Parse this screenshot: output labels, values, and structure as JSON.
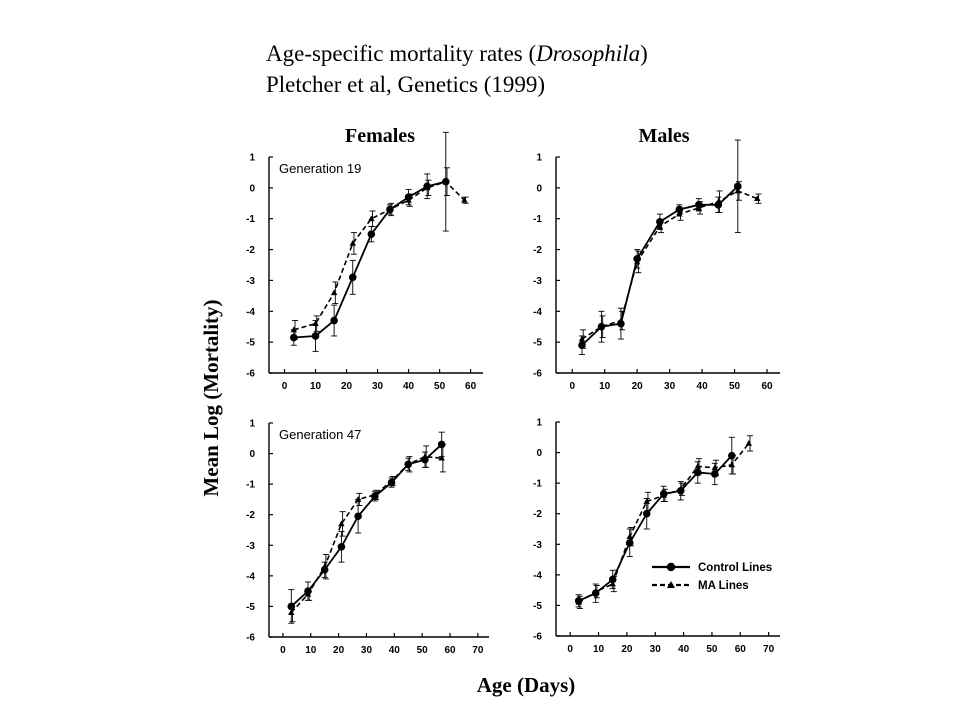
{
  "slide": {
    "title_line1_prefix": "Age-specific mortality rates (",
    "title_line1_italic": "Drosophila",
    "title_line1_suffix": ")",
    "title_line2": "Pletcher et al, Genetics (1999)"
  },
  "figure": {
    "column_titles": [
      "Females",
      "Males"
    ],
    "ylabel": "Mean Log (Mortality)",
    "xlabel": "Age (Days)",
    "legend": {
      "control": "Control Lines",
      "ma": "MA Lines"
    }
  },
  "chart_data": [
    {
      "type": "line",
      "panel": "females-generation-19",
      "annotation": "Generation 19",
      "x_ticks": [
        0,
        10,
        20,
        30,
        40,
        50,
        60
      ],
      "y_ticks": [
        1,
        0,
        -1,
        -2,
        -3,
        -4,
        -5,
        -6
      ],
      "xlim": [
        -5,
        64
      ],
      "ylim": [
        -6,
        1
      ],
      "series": [
        {
          "name": "Control Lines",
          "style": "solid-circle",
          "points": [
            [
              3,
              -4.85,
              0.25
            ],
            [
              10,
              -4.8,
              0.5
            ],
            [
              16,
              -4.3,
              0.5
            ],
            [
              22,
              -2.9,
              0.55
            ],
            [
              28,
              -1.5,
              0.25
            ],
            [
              34,
              -0.7,
              0.15
            ],
            [
              40,
              -0.3,
              0.25
            ],
            [
              46,
              0.05,
              0.4
            ],
            [
              52,
              0.2,
              1.6
            ]
          ]
        },
        {
          "name": "MA Lines",
          "style": "dashed-triangle",
          "points": [
            [
              3,
              -4.6,
              0.3
            ],
            [
              10,
              -4.4,
              0.25
            ],
            [
              16,
              -3.4,
              0.35
            ],
            [
              22,
              -1.8,
              0.35
            ],
            [
              28,
              -1.0,
              0.25
            ],
            [
              34,
              -0.7,
              0.2
            ],
            [
              40,
              -0.4,
              0.2
            ],
            [
              46,
              0.0,
              0.25
            ],
            [
              52,
              0.2,
              0.45
            ],
            [
              58,
              -0.4,
              0.1
            ]
          ]
        }
      ]
    },
    {
      "type": "line",
      "panel": "males-generation-19",
      "annotation": "",
      "x_ticks": [
        0,
        10,
        20,
        30,
        40,
        50,
        60
      ],
      "y_ticks": [
        1,
        0,
        -1,
        -2,
        -3,
        -4,
        -5,
        -6
      ],
      "xlim": [
        -5,
        64
      ],
      "ylim": [
        -6,
        1
      ],
      "series": [
        {
          "name": "Control Lines",
          "style": "solid-circle",
          "points": [
            [
              3,
              -5.1,
              0.3
            ],
            [
              9,
              -4.5,
              0.5
            ],
            [
              15,
              -4.4,
              0.5
            ],
            [
              20,
              -2.3,
              0.3
            ],
            [
              27,
              -1.1,
              0.25
            ],
            [
              33,
              -0.7,
              0.15
            ],
            [
              39,
              -0.55,
              0.2
            ],
            [
              45,
              -0.55,
              0.25
            ],
            [
              51,
              0.05,
              1.5
            ]
          ]
        },
        {
          "name": "MA Lines",
          "style": "dashed-triangle",
          "points": [
            [
              3,
              -4.9,
              0.3
            ],
            [
              9,
              -4.5,
              0.35
            ],
            [
              15,
              -4.3,
              0.3
            ],
            [
              20,
              -2.4,
              0.35
            ],
            [
              27,
              -1.25,
              0.2
            ],
            [
              33,
              -0.85,
              0.2
            ],
            [
              39,
              -0.65,
              0.2
            ],
            [
              45,
              -0.45,
              0.35
            ],
            [
              51,
              -0.1,
              0.3
            ],
            [
              57,
              -0.35,
              0.15
            ]
          ]
        }
      ]
    },
    {
      "type": "line",
      "panel": "females-generation-47",
      "annotation": "Generation 47",
      "x_ticks": [
        0,
        10,
        20,
        30,
        40,
        50,
        60,
        70
      ],
      "y_ticks": [
        1,
        0,
        -1,
        -2,
        -3,
        -4,
        -5,
        -6
      ],
      "xlim": [
        -5,
        74
      ],
      "ylim": [
        -6,
        1
      ],
      "series": [
        {
          "name": "Control Lines",
          "style": "solid-circle",
          "points": [
            [
              3,
              -5.0,
              0.55
            ],
            [
              9,
              -4.5,
              0.3
            ],
            [
              15,
              -3.8,
              0.25
            ],
            [
              21,
              -3.05,
              0.5
            ],
            [
              27,
              -2.05,
              0.55
            ],
            [
              33,
              -1.4,
              0.15
            ],
            [
              39,
              -0.95,
              0.15
            ],
            [
              45,
              -0.35,
              0.2
            ],
            [
              51,
              -0.2,
              0.25
            ],
            [
              57,
              0.3,
              0.4
            ]
          ]
        },
        {
          "name": "MA Lines",
          "style": "dashed-triangle",
          "points": [
            [
              3,
              -5.2,
              0.3
            ],
            [
              9,
              -4.6,
              0.2
            ],
            [
              15,
              -3.7,
              0.4
            ],
            [
              21,
              -2.3,
              0.4
            ],
            [
              27,
              -1.5,
              0.2
            ],
            [
              33,
              -1.35,
              0.15
            ],
            [
              39,
              -0.9,
              0.15
            ],
            [
              45,
              -0.35,
              0.25
            ],
            [
              51,
              -0.1,
              0.35
            ],
            [
              57,
              -0.15,
              0.45
            ]
          ]
        }
      ]
    },
    {
      "type": "line",
      "panel": "males-generation-47",
      "annotation": "",
      "x_ticks": [
        0,
        10,
        20,
        30,
        40,
        50,
        60,
        70
      ],
      "y_ticks": [
        1,
        0,
        -1,
        -2,
        -3,
        -4,
        -5,
        -6
      ],
      "xlim": [
        -5,
        74
      ],
      "ylim": [
        -6,
        1
      ],
      "series": [
        {
          "name": "Control Lines",
          "style": "solid-circle",
          "points": [
            [
              3,
              -4.85,
              0.2
            ],
            [
              9,
              -4.6,
              0.3
            ],
            [
              15,
              -4.15,
              0.3
            ],
            [
              21,
              -2.95,
              0.45
            ],
            [
              27,
              -2.0,
              0.5
            ],
            [
              33,
              -1.35,
              0.25
            ],
            [
              39,
              -1.25,
              0.3
            ],
            [
              45,
              -0.65,
              0.35
            ],
            [
              51,
              -0.7,
              0.35
            ],
            [
              57,
              -0.1,
              0.6
            ]
          ]
        },
        {
          "name": "MA Lines",
          "style": "dashed-triangle",
          "points": [
            [
              3,
              -4.9,
              0.2
            ],
            [
              9,
              -4.55,
              0.2
            ],
            [
              15,
              -4.3,
              0.25
            ],
            [
              21,
              -2.75,
              0.3
            ],
            [
              27,
              -1.6,
              0.3
            ],
            [
              33,
              -1.4,
              0.2
            ],
            [
              39,
              -1.2,
              0.2
            ],
            [
              45,
              -0.45,
              0.25
            ],
            [
              51,
              -0.5,
              0.25
            ],
            [
              57,
              -0.4,
              0.3
            ],
            [
              63,
              0.3,
              0.25
            ]
          ]
        }
      ]
    }
  ]
}
